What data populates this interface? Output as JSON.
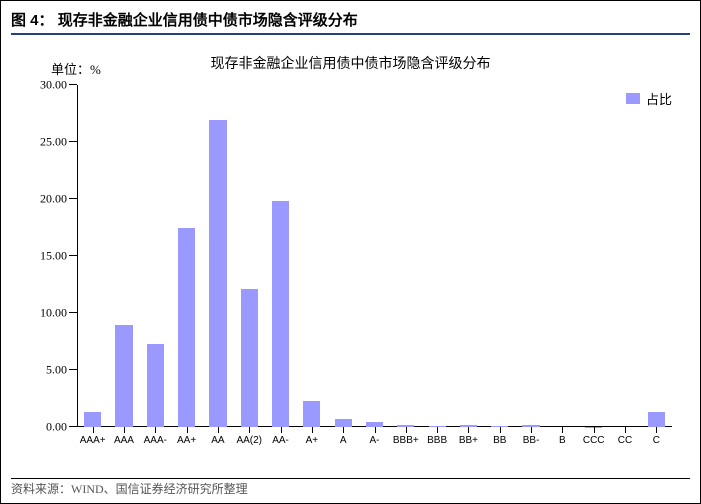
{
  "figure_label": "图 4：",
  "figure_title": "现存非金融企业信用债中债市场隐含评级分布",
  "chart": {
    "type": "bar",
    "unit_label": "单位：%",
    "subtitle": "现存非金融企业信用债中债市场隐含评级分布",
    "legend_label": "占比",
    "categories": [
      "AAA+",
      "AAA",
      "AAA-",
      "AA+",
      "AA",
      "AA(2)",
      "AA-",
      "A+",
      "A",
      "A-",
      "BBB+",
      "BBB",
      "BB+",
      "BB",
      "BB-",
      "B",
      "CCC",
      "CC",
      "C"
    ],
    "values": [
      1.28,
      8.92,
      7.32,
      17.47,
      26.93,
      12.14,
      19.84,
      2.27,
      0.7,
      0.45,
      0.18,
      0.12,
      0.18,
      0.05,
      0.16,
      0.0,
      0.02,
      0.0,
      1.32
    ],
    "bar_color": "#9999ff",
    "ylim": [
      0,
      30
    ],
    "ytick_step": 5,
    "y_tick_labels": [
      "0.00",
      "5.00",
      "10.00",
      "15.00",
      "20.00",
      "25.00",
      "30.00"
    ],
    "background_color": "#ffffff",
    "axis_color": "#000000",
    "bar_width_ratio": 0.55,
    "title_fontsize": 15,
    "label_fontsize": 12,
    "tick_fontsize": 10
  },
  "source": "资料来源：WIND、国信证券经济研究所整理",
  "colors": {
    "title_rule": "#24427a",
    "text": "#000000",
    "source_text": "#555555"
  }
}
